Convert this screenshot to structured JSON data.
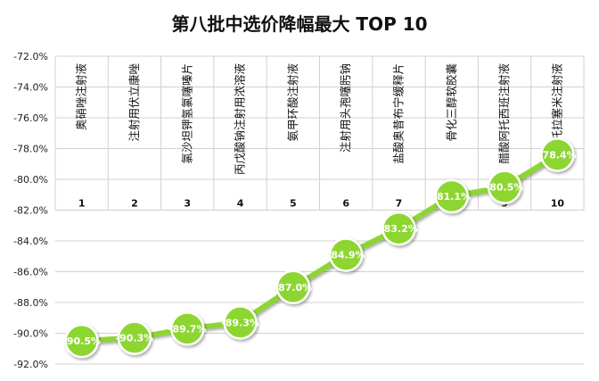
{
  "chart_data": {
    "type": "line",
    "title": "第八批中选价降幅最大 TOP  10",
    "categories": [
      "1",
      "2",
      "3",
      "4",
      "5",
      "6",
      "7",
      "8",
      "9",
      "10"
    ],
    "drug_names": [
      "奥硝唑注射液",
      "注射用伏立康唑",
      "氯沙坦钾氢氯噻嗪片",
      "丙戊酸钠注射用浓溶液",
      "氨甲环酸注射液",
      "注射用头孢噻肟钠",
      "盐酸奥昔布宁缓释片",
      "骨化三醇软胶囊",
      "醋酸阿托西班注射液",
      "托拉塞米注射液"
    ],
    "values": [
      -90.5,
      -90.3,
      -89.7,
      -89.3,
      -87.0,
      -84.9,
      -83.2,
      -81.1,
      -80.5,
      -78.4
    ],
    "value_labels": [
      "-90.5%",
      "-90.3%",
      "-89.7%",
      "-89.3%",
      "-87.0%",
      "-84.9%",
      "-83.2%",
      "-81.1%",
      "-80.5%",
      "-78.4%"
    ],
    "y_ticks": [
      "-72.0%",
      "-74.0%",
      "-76.0%",
      "-78.0%",
      "-80.0%",
      "-82.0%",
      "-84.0%",
      "-86.0%",
      "-88.0%",
      "-90.0%",
      "-92.0%"
    ],
    "ylim": [
      -92,
      -72
    ],
    "colors": {
      "line": "#8dd630",
      "marker": "#8dd630",
      "marker_edge": "#ffffff",
      "grid": "#d0d0d0"
    }
  }
}
